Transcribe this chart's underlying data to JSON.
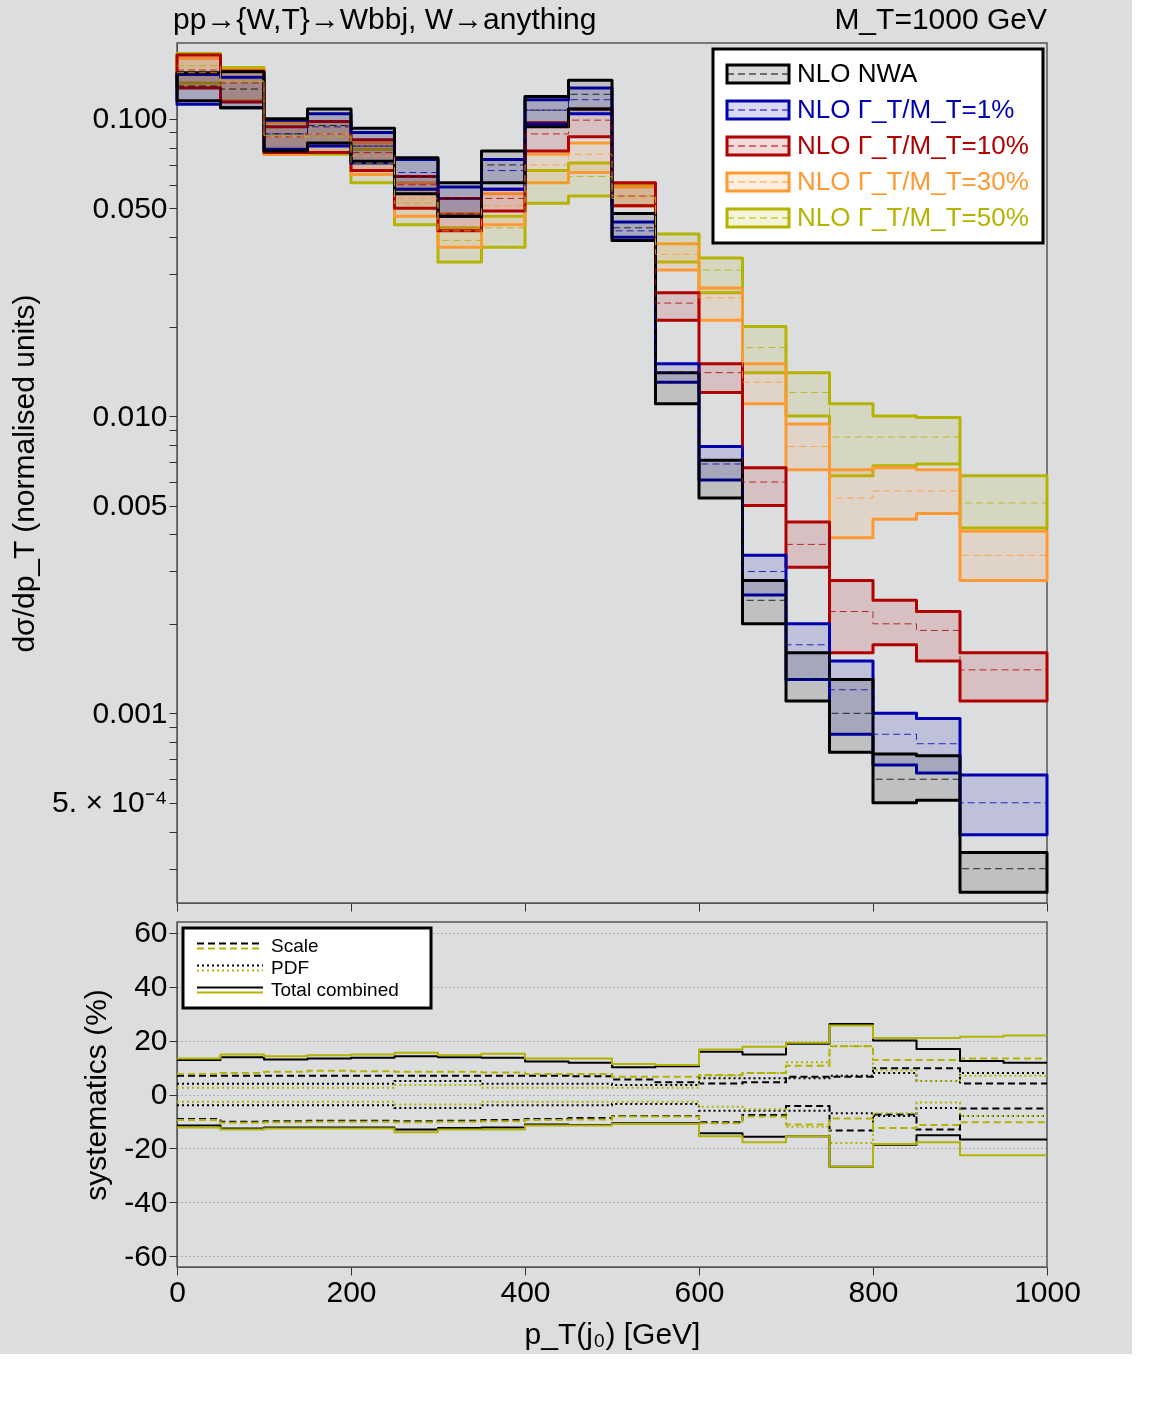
{
  "chart_data": [
    {
      "type": "step",
      "title": "pp→{W,T}→Wbbj, W→anything",
      "annotations": [
        "M_T=1000 GeV"
      ],
      "ylabel": "dσ/dp_T (normalised units)",
      "log": "y",
      "legend": "top right",
      "tick_labels": "y",
      "xlim": [
        0,
        1000
      ],
      "xticks": [
        0,
        200,
        400,
        600,
        800,
        1000
      ],
      "ylim": [
        0.00023,
        0.18
      ],
      "yticks": [
        {
          "value": 0.1,
          "label": "0.100"
        },
        {
          "value": 0.05,
          "label": "0.050"
        },
        {
          "value": 0.01,
          "label": "0.010"
        },
        {
          "value": 0.005,
          "label": "0.005"
        },
        {
          "value": 0.001,
          "label": "0.001"
        },
        {
          "value": 0.0005,
          "label": "5. × 10⁻⁴"
        },
        {
          "value": 0.0003,
          "label": null
        },
        {
          "value": 0.0004,
          "label": null
        },
        {
          "value": 0.0006,
          "label": null
        },
        {
          "value": 0.0007,
          "label": null
        },
        {
          "value": 0.0008,
          "label": null
        },
        {
          "value": 0.0009,
          "label": null
        },
        {
          "value": 0.002,
          "label": null
        },
        {
          "value": 0.003,
          "label": null
        },
        {
          "value": 0.004,
          "label": null
        },
        {
          "value": 0.006,
          "label": null
        },
        {
          "value": 0.007,
          "label": null
        },
        {
          "value": 0.008,
          "label": null
        },
        {
          "value": 0.009,
          "label": null
        },
        {
          "value": 0.02,
          "label": null
        },
        {
          "value": 0.03,
          "label": null
        },
        {
          "value": 0.04,
          "label": null
        },
        {
          "value": 0.06,
          "label": null
        },
        {
          "value": 0.07,
          "label": null
        },
        {
          "value": 0.08,
          "label": null
        },
        {
          "value": 0.09,
          "label": null
        }
      ],
      "x": [
        0,
        50,
        100,
        150,
        200,
        250,
        300,
        350,
        400,
        450,
        500,
        550,
        600,
        650,
        700,
        750,
        800,
        850,
        900,
        950,
        1000
      ],
      "series": [
        {
          "name": "NLO NWA",
          "color": "#000000",
          "line_style": "dashed",
          "values": [
            0.129,
            0.126,
            0.089,
            0.095,
            0.081,
            0.064,
            0.054,
            0.07,
            0.107,
            0.121,
            0.043,
            0.013,
            0.0061,
            0.0024,
            0.0013,
            0.001,
            0.0006,
            0.0006,
            0.0003,
            0.0003,
            0.0003
          ],
          "lower": [
            0.115,
            0.109,
            0.078,
            0.083,
            0.072,
            0.056,
            0.047,
            0.061,
            0.094,
            0.108,
            0.039,
            0.011,
            0.0053,
            0.002,
            0.0011,
            0.00074,
            0.0005,
            0.00051,
            0.00025,
            0.00025,
            0.00025
          ],
          "upper": [
            0.143,
            0.144,
            0.1,
            0.108,
            0.093,
            0.074,
            0.061,
            0.078,
            0.119,
            0.135,
            0.048,
            0.014,
            0.0071,
            0.0028,
            0.0016,
            0.0013,
            0.00073,
            0.00072,
            0.00034,
            0.00034,
            0.00034
          ]
        },
        {
          "name": "NLO Γ_T/M_T=1%",
          "color": "#0000b0",
          "line_style": "dashed",
          "values": [
            null,
            null,
            0.089,
            0.094,
            0.081,
            0.066,
            0.054,
            0.067,
            0.107,
            0.116,
            0.042,
            0.014,
            0.0069,
            0.003,
            0.0017,
            0.0012,
            0.00085,
            0.00079,
            0.0005,
            0.0005,
            0.0005
          ],
          "lower": [
            0.112,
            0.109,
            0.079,
            0.081,
            0.071,
            0.058,
            0.047,
            0.058,
            0.096,
            0.104,
            0.04,
            0.013,
            0.0061,
            0.0025,
            0.0013,
            0.00085,
            0.00067,
            0.00063,
            0.00039,
            0.00039,
            0.00039
          ],
          "upper": [
            0.141,
            0.138,
            0.099,
            0.104,
            0.09,
            0.073,
            0.059,
            0.073,
            0.116,
            0.127,
            0.045,
            0.015,
            0.0079,
            0.0034,
            0.002,
            0.0015,
            0.001,
            0.00096,
            0.00062,
            0.00062,
            0.00062
          ]
        },
        {
          "name": "NLO Γ_T/M_T=10%",
          "color": "#b00000",
          "line_style": "dashed",
          "values": [
            0.146,
            0.132,
            0.087,
            0.089,
            0.077,
            0.06,
            0.048,
            0.054,
            0.089,
            0.099,
            0.055,
            0.024,
            0.014,
            0.006,
            0.0037,
            0.0022,
            0.002,
            0.0019,
            0.0014,
            0.0014,
            0.0014
          ],
          "lower": [
            0.127,
            0.114,
            0.077,
            0.077,
            0.067,
            0.05,
            0.042,
            0.049,
            0.078,
            0.087,
            0.051,
            0.021,
            0.012,
            0.005,
            0.0031,
            0.0016,
            0.0017,
            0.0015,
            0.0011,
            0.0011,
            0.0011
          ],
          "upper": [
            0.164,
            0.145,
            0.094,
            0.098,
            0.085,
            0.064,
            0.054,
            0.058,
            0.097,
            0.108,
            0.061,
            0.026,
            0.015,
            0.0067,
            0.0044,
            0.0028,
            0.0024,
            0.0022,
            0.0016,
            0.0016,
            0.0016
          ]
        },
        {
          "name": "NLO Γ_T/M_T=30%",
          "color": "#ff9933",
          "line_style": "dashed",
          "values": [
            0.143,
            0.134,
            0.087,
            0.089,
            0.075,
            0.054,
            0.042,
            0.051,
            0.07,
            0.076,
            0.054,
            0.035,
            0.025,
            0.013,
            0.0079,
            0.0053,
            0.0056,
            0.0056,
            0.0034,
            0.0034,
            0.0034
          ],
          "lower": [
            0.128,
            0.115,
            0.076,
            0.077,
            0.065,
            0.047,
            0.037,
            0.044,
            0.061,
            0.066,
            0.051,
            0.031,
            0.021,
            0.011,
            0.0066,
            0.0039,
            0.0045,
            0.0047,
            0.0028,
            0.0028,
            0.0028
          ],
          "upper": [
            0.16,
            0.146,
            0.097,
            0.098,
            0.083,
            0.061,
            0.048,
            0.056,
            0.076,
            0.083,
            0.059,
            0.038,
            0.027,
            0.015,
            0.0094,
            0.0066,
            0.0067,
            0.0066,
            0.0041,
            0.0041,
            0.0041
          ]
        },
        {
          "name": "NLO Γ_T/M_T=50%",
          "color": "#b3b300",
          "line_style": "dashed",
          "values": [
            0.151,
            0.134,
            0.088,
            0.087,
            0.071,
            0.052,
            0.039,
            0.043,
            0.061,
            0.064,
            0.055,
            0.038,
            0.031,
            0.017,
            0.012,
            0.0085,
            0.0085,
            0.0085,
            0.0051,
            0.0051,
            0.0051
          ],
          "lower": [
            0.132,
            0.115,
            0.076,
            0.076,
            0.061,
            0.044,
            0.033,
            0.037,
            0.052,
            0.055,
            0.051,
            0.033,
            0.026,
            0.014,
            0.01,
            0.0063,
            0.0068,
            0.0069,
            0.0042,
            0.0042,
            0.0042
          ],
          "upper": [
            0.166,
            0.149,
            0.098,
            0.098,
            0.079,
            0.058,
            0.043,
            0.047,
            0.067,
            0.071,
            0.06,
            0.041,
            0.034,
            0.02,
            0.014,
            0.011,
            0.01,
            0.0099,
            0.0063,
            0.0063,
            0.0063
          ]
        }
      ]
    },
    {
      "type": "step",
      "ylabel": "systematics  (%)",
      "xlabel": "p_T(j₀) [GeV]",
      "legend": "top left",
      "grid": "y",
      "xlim": [
        0,
        1000
      ],
      "xticks": [
        0,
        200,
        400,
        600,
        800,
        1000
      ],
      "ylim": [
        -64,
        64
      ],
      "yticks": [
        -60,
        -40,
        -20,
        0,
        20,
        40,
        60
      ],
      "x": [
        0,
        50,
        100,
        150,
        200,
        250,
        300,
        350,
        400,
        450,
        500,
        550,
        600,
        650,
        700,
        750,
        800,
        850,
        900,
        950,
        1000
      ],
      "series": [
        {
          "name": "Scale",
          "color": "#000000",
          "line_style": "dashed",
          "values": [
            7.0,
            7.0,
            7.0,
            7.0,
            7.0,
            7.0,
            7.0,
            7.0,
            7.0,
            6.8,
            5.6,
            4.5,
            4.1,
            4.5,
            6.6,
            6.6,
            9.7,
            9.7,
            4.1,
            4.1,
            4.1
          ]
        },
        {
          "color": "#000000",
          "line_style": "dashed",
          "values": [
            -9.1,
            -10.1,
            -9.9,
            -9.7,
            -9.7,
            -9.9,
            -9.7,
            -9.5,
            -9.1,
            -8.7,
            -8.0,
            -8.0,
            -10.3,
            -7.6,
            -4.3,
            -13.4,
            -7.4,
            -13.0,
            -5.2,
            -5.2,
            -5.2
          ]
        },
        {
          "color": "#b3b300",
          "line_style": "dashed",
          "values": [
            7.6,
            8.0,
            8.4,
            8.8,
            8.6,
            8.4,
            8.4,
            8.2,
            7.6,
            7.6,
            6.6,
            6.6,
            7.2,
            8.0,
            10.7,
            17.9,
            12.8,
            12.8,
            13.4,
            13.4,
            13.4
          ]
        },
        {
          "color": "#b3b300",
          "line_style": "dashed",
          "values": [
            -9.5,
            -10.5,
            -10.3,
            -10.1,
            -10.1,
            -10.3,
            -10.1,
            -9.9,
            -9.5,
            -9.3,
            -8.2,
            -8.2,
            -10.7,
            -8.2,
            -11.1,
            -8.9,
            -12.4,
            -11.3,
            -10.3,
            -10.3,
            -10.3
          ]
        },
        {
          "name": "PDF",
          "color": "#000000",
          "line_style": "dotted",
          "values": [
            4.0,
            4.0,
            4.0,
            4.0,
            4.0,
            5.0,
            5.0,
            4.0,
            4.0,
            4.0,
            3.5,
            3.5,
            6.0,
            6.0,
            6.0,
            7.0,
            8.0,
            5.0,
            8.0,
            8.0,
            8.0
          ]
        },
        {
          "color": "#000000",
          "line_style": "dotted",
          "values": [
            -4.0,
            -4.0,
            -4.0,
            -4.0,
            -4.0,
            -5.0,
            -5.0,
            -4.0,
            -4.0,
            -4.0,
            -3.5,
            -3.5,
            -6.0,
            -6.0,
            -6.0,
            -7.0,
            -8.0,
            -5.0,
            -8.0,
            -8.0,
            -8.0
          ]
        },
        {
          "color": "#b3b300",
          "line_style": "dotted",
          "values": [
            2.5,
            2.5,
            2.5,
            2.5,
            2.5,
            3.5,
            3.5,
            2.5,
            2.5,
            2.5,
            2.5,
            2.5,
            7.0,
            8.0,
            12.0,
            18.0,
            9.0,
            5.0,
            7.0,
            7.0,
            7.0
          ]
        },
        {
          "color": "#b3b300",
          "line_style": "dotted",
          "values": [
            -2.7,
            -2.7,
            -2.7,
            -2.7,
            -2.7,
            -3.7,
            -3.7,
            -2.7,
            -2.7,
            -2.7,
            -2.7,
            -2.7,
            -4.5,
            -5.5,
            -12.0,
            -18.0,
            -7.0,
            -3.0,
            -8.0,
            -8.0,
            -8.0
          ]
        },
        {
          "name": "Total combined",
          "color": "#000000",
          "line_style": "solid",
          "values": [
            12.8,
            13.8,
            13.0,
            13.4,
            13.6,
            14.2,
            13.8,
            13.6,
            12.2,
            11.8,
            10.1,
            10.5,
            15.9,
            14.8,
            18.8,
            26.2,
            20.0,
            16.9,
            12.4,
            11.8,
            11.8
          ]
        },
        {
          "color": "#000000",
          "line_style": "solid",
          "values": [
            -11.5,
            -12.6,
            -12.2,
            -12.2,
            -12.2,
            -13.0,
            -12.4,
            -12.2,
            -11.1,
            -11.3,
            -10.7,
            -10.7,
            -14.4,
            -15.7,
            -15.5,
            -26.8,
            -18.6,
            -15.1,
            -16.7,
            -16.7,
            -16.7
          ]
        },
        {
          "color": "#b3b300",
          "line_style": "solid",
          "values": [
            13.4,
            14.8,
            14.2,
            14.6,
            14.8,
            15.5,
            14.6,
            15.1,
            13.4,
            13.4,
            11.3,
            10.9,
            16.7,
            17.7,
            19.2,
            25.6,
            21.0,
            21.0,
            21.4,
            21.9,
            21.9
          ]
        },
        {
          "color": "#b3b300",
          "line_style": "solid",
          "values": [
            -12.2,
            -13.0,
            -12.6,
            -12.6,
            -12.6,
            -14.0,
            -13.0,
            -13.0,
            -11.5,
            -11.5,
            -10.9,
            -10.9,
            -15.5,
            -17.7,
            -15.5,
            -26.8,
            -18.4,
            -17.7,
            -22.5,
            -22.5,
            -22.5
          ]
        }
      ]
    }
  ]
}
